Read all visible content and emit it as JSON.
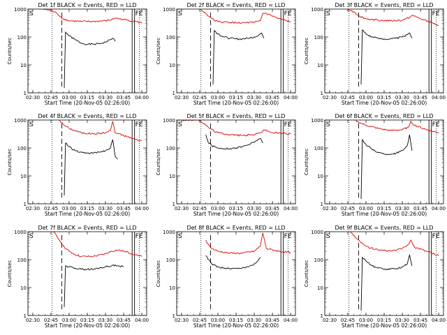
{
  "figure": {
    "colors": {
      "events": "#000000",
      "lld": "#dd0000",
      "axes": "#000000"
    },
    "shared": {
      "xlabel": "Start Time (20-Nov-05 02:26:00)",
      "ylabel": "Counts/sec",
      "x_tick_labels": [
        "02:30",
        "02:45",
        "03:00",
        "03:15",
        "03:30",
        "03:45",
        "04:00"
      ],
      "y_tick_labels": [
        "1",
        "10",
        "100",
        "1000"
      ],
      "marker_left": "S",
      "marker_right": "FE"
    }
  },
  "chart_data": [
    {
      "type": "line",
      "title": "Det 1f BLACK = Events, RED = LLD",
      "xlabel": "Start Time (20-Nov-05 02:26:00)",
      "ylabel": "Counts/sec",
      "x_ticks": [
        "02:30",
        "02:45",
        "03:00",
        "03:15",
        "03:30",
        "03:45",
        "04:00"
      ],
      "xlim_minutes_after_start": [
        0,
        98
      ],
      "ylim": [
        1,
        1000
      ],
      "yscale": "log",
      "series": [
        {
          "name": "Events",
          "color": "#000000",
          "x": [
            "02:56",
            "02:57",
            "03:00",
            "03:05",
            "03:10",
            "03:15",
            "03:20",
            "03:25",
            "03:30",
            "03:34",
            "03:36",
            "03:37",
            "03:38"
          ],
          "y": [
            1.5,
            150,
            110,
            80,
            60,
            55,
            55,
            58,
            65,
            80,
            90,
            85,
            70
          ]
        },
        {
          "name": "LLD",
          "color": "#dd0000",
          "x": [
            "02:38",
            "02:45",
            "02:50",
            "02:55",
            "03:00",
            "03:10",
            "03:20",
            "03:30",
            "03:35",
            "03:38",
            "03:45",
            "03:55",
            "04:00"
          ],
          "y": [
            1000,
            900,
            700,
            450,
            380,
            360,
            360,
            380,
            420,
            480,
            420,
            360,
            320
          ]
        }
      ]
    },
    {
      "type": "line",
      "title": "Det 2f BLACK = Events, RED = LLD",
      "xlabel": "Start Time (20-Nov-05 02:26:00)",
      "ylabel": "Counts/sec",
      "x_ticks": [
        "02:30",
        "02:45",
        "03:00",
        "03:15",
        "03:30",
        "03:45",
        "04:00"
      ],
      "xlim_minutes_after_start": [
        0,
        98
      ],
      "ylim": [
        1,
        1000
      ],
      "yscale": "log",
      "series": [
        {
          "name": "Events",
          "color": "#000000",
          "x": [
            "02:56",
            "02:57",
            "03:00",
            "03:05",
            "03:10",
            "03:15",
            "03:20",
            "03:25",
            "03:30",
            "03:34",
            "03:36",
            "03:37",
            "03:38"
          ],
          "y": [
            2,
            170,
            130,
            100,
            90,
            85,
            85,
            90,
            100,
            120,
            140,
            110,
            90
          ]
        },
        {
          "name": "LLD",
          "color": "#dd0000",
          "x": [
            "02:45",
            "02:50",
            "02:55",
            "03:00",
            "03:10",
            "03:20",
            "03:30",
            "03:35",
            "03:37",
            "03:40",
            "03:50",
            "04:00"
          ],
          "y": [
            1000,
            700,
            450,
            350,
            330,
            320,
            330,
            380,
            700,
            700,
            450,
            350
          ]
        }
      ]
    },
    {
      "type": "line",
      "title": "Det 3f BLACK = Events, RED = LLD",
      "xlabel": "Start Time (20-Nov-05 02:26:00)",
      "ylabel": "Counts/sec",
      "x_ticks": [
        "02:30",
        "02:45",
        "03:00",
        "03:15",
        "03:30",
        "03:45",
        "04:00"
      ],
      "xlim_minutes_after_start": [
        0,
        98
      ],
      "ylim": [
        1,
        1000
      ],
      "yscale": "log",
      "series": [
        {
          "name": "Events",
          "color": "#000000",
          "x": [
            "02:56",
            "02:57",
            "03:00",
            "03:05",
            "03:10",
            "03:15",
            "03:20",
            "03:25",
            "03:30",
            "03:34",
            "03:36",
            "03:37",
            "03:38"
          ],
          "y": [
            2,
            180,
            130,
            100,
            90,
            85,
            85,
            90,
            100,
            120,
            140,
            110,
            90
          ]
        },
        {
          "name": "LLD",
          "color": "#dd0000",
          "x": [
            "02:45",
            "02:50",
            "02:55",
            "03:00",
            "03:10",
            "03:20",
            "03:30",
            "03:36",
            "03:38",
            "03:45",
            "03:55",
            "04:00"
          ],
          "y": [
            1000,
            800,
            550,
            450,
            400,
            380,
            400,
            500,
            600,
            450,
            320,
            250
          ]
        }
      ]
    },
    {
      "type": "line",
      "title": "Det 4f BLACK = Events, RED = LLD",
      "xlabel": "Start Time (20-Nov-05 02:26:00)",
      "ylabel": "Counts/sec",
      "x_ticks": [
        "02:30",
        "02:45",
        "03:00",
        "03:15",
        "03:30",
        "03:45",
        "04:00"
      ],
      "xlim_minutes_after_start": [
        0,
        98
      ],
      "ylim": [
        1,
        1000
      ],
      "yscale": "log",
      "series": [
        {
          "name": "Events",
          "color": "#000000",
          "x": [
            "02:56",
            "02:57",
            "03:00",
            "03:05",
            "03:10",
            "03:15",
            "03:20",
            "03:25",
            "03:30",
            "03:34",
            "03:36",
            "03:37",
            "03:38",
            "03:40"
          ],
          "y": [
            2,
            150,
            110,
            80,
            70,
            65,
            65,
            70,
            80,
            100,
            200,
            100,
            50,
            40
          ]
        },
        {
          "name": "LLD",
          "color": "#dd0000",
          "x": [
            "02:52",
            "02:55",
            "03:00",
            "03:10",
            "03:20",
            "03:30",
            "03:34",
            "03:36",
            "03:38",
            "03:45",
            "03:55",
            "04:00"
          ],
          "y": [
            1000,
            700,
            500,
            350,
            320,
            350,
            420,
            900,
            350,
            280,
            200,
            180
          ]
        }
      ]
    },
    {
      "type": "line",
      "title": "Det 5f BLACK = Events, RED = LLD",
      "xlabel": "Start Time (20-Nov-05 02:26:00)",
      "ylabel": "Counts/sec",
      "x_ticks": [
        "02:30",
        "02:45",
        "03:00",
        "03:15",
        "03:30",
        "03:45",
        "04:00"
      ],
      "xlim_minutes_after_start": [
        0,
        98
      ],
      "ylim": [
        1,
        1000
      ],
      "yscale": "log",
      "series": [
        {
          "name": "Events",
          "color": "#000000",
          "x": [
            "02:50",
            "02:52",
            "02:55",
            "03:00",
            "03:05",
            "03:10",
            "03:15",
            "03:20",
            "03:25",
            "03:30",
            "03:33",
            "03:35",
            "03:37"
          ],
          "y": [
            300,
            160,
            120,
            100,
            95,
            95,
            100,
            110,
            130,
            160,
            200,
            220,
            150
          ]
        },
        {
          "name": "LLD",
          "color": "#dd0000",
          "x": [
            "02:30",
            "02:40",
            "02:45",
            "02:50",
            "02:55",
            "03:00",
            "03:10",
            "03:20",
            "03:30",
            "03:35",
            "03:38",
            "03:45",
            "04:00"
          ],
          "y": [
            1000,
            1000,
            1000,
            650,
            450,
            350,
            300,
            280,
            300,
            350,
            450,
            350,
            320
          ]
        }
      ]
    },
    {
      "type": "line",
      "title": "Det 6f BLACK = Events, RED = LLD",
      "xlabel": "Start Time (20-Nov-05 02:26:00)",
      "ylabel": "Counts/sec",
      "x_ticks": [
        "02:30",
        "02:45",
        "03:00",
        "03:15",
        "03:30",
        "03:45",
        "04:00"
      ],
      "xlim_minutes_after_start": [
        0,
        98
      ],
      "ylim": [
        1,
        1000
      ],
      "yscale": "log",
      "series": [
        {
          "name": "Events",
          "color": "#000000",
          "x": [
            "02:56",
            "02:57",
            "03:00",
            "03:05",
            "03:10",
            "03:15",
            "03:20",
            "03:25",
            "03:30",
            "03:34",
            "03:36",
            "03:37",
            "03:38"
          ],
          "y": [
            1.5,
            200,
            130,
            90,
            70,
            60,
            60,
            65,
            80,
            120,
            300,
            150,
            80
          ]
        },
        {
          "name": "LLD",
          "color": "#dd0000",
          "x": [
            "02:50",
            "02:55",
            "03:00",
            "03:10",
            "03:20",
            "03:30",
            "03:35",
            "03:37",
            "03:40",
            "03:50",
            "04:00"
          ],
          "y": [
            1000,
            800,
            650,
            500,
            420,
            450,
            550,
            900,
            650,
            450,
            350
          ]
        }
      ]
    },
    {
      "type": "line",
      "title": "Det 7f BLACK = Events, RED = LLD",
      "xlabel": "Start Time (20-Nov-05 02:26:00)",
      "ylabel": "Counts/sec",
      "x_ticks": [
        "02:30",
        "02:45",
        "03:00",
        "03:15",
        "03:30",
        "03:45",
        "04:00"
      ],
      "xlim_minutes_after_start": [
        0,
        98
      ],
      "ylim": [
        1,
        1000
      ],
      "yscale": "log",
      "series": [
        {
          "name": "Events",
          "color": "#000000",
          "x": [
            "02:56",
            "02:57",
            "03:00",
            "03:05",
            "03:10",
            "03:15",
            "03:20",
            "03:25",
            "03:30",
            "03:35",
            "03:38",
            "03:40",
            "03:45"
          ],
          "y": [
            2,
            60,
            55,
            50,
            45,
            45,
            45,
            50,
            55,
            60,
            65,
            60,
            55
          ]
        },
        {
          "name": "LLD",
          "color": "#dd0000",
          "x": [
            "02:47",
            "02:52",
            "02:56",
            "03:00",
            "03:05",
            "03:10",
            "03:20",
            "03:30",
            "03:35",
            "03:40",
            "03:45",
            "03:55",
            "04:00"
          ],
          "y": [
            1000,
            500,
            280,
            200,
            150,
            130,
            130,
            160,
            200,
            220,
            200,
            150,
            130
          ]
        }
      ]
    },
    {
      "type": "line",
      "title": "Det 8f BLACK = Events, RED = LLD",
      "xlabel": "Start Time (20-Nov-05 02:26:00)",
      "ylabel": "Counts/sec",
      "x_ticks": [
        "02:30",
        "02:45",
        "03:00",
        "03:15",
        "03:30",
        "03:45",
        "04:00"
      ],
      "xlim_minutes_after_start": [
        0,
        98
      ],
      "ylim": [
        1,
        1000
      ],
      "yscale": "log",
      "series": [
        {
          "name": "Events",
          "color": "#000000",
          "x": [
            "02:50",
            "02:52",
            "02:55",
            "03:00",
            "03:05",
            "03:10",
            "03:15",
            "03:20",
            "03:25",
            "03:30",
            "03:33",
            "03:35"
          ],
          "y": [
            140,
            100,
            70,
            55,
            50,
            48,
            48,
            50,
            55,
            70,
            90,
            120
          ]
        },
        {
          "name": "LLD",
          "color": "#dd0000",
          "x": [
            "02:50",
            "02:52",
            "02:55",
            "03:00",
            "03:10",
            "03:20",
            "03:30",
            "03:35",
            "03:37",
            "03:40",
            "03:50",
            "04:00"
          ],
          "y": [
            500,
            350,
            250,
            200,
            170,
            170,
            200,
            300,
            900,
            250,
            200,
            180
          ]
        }
      ]
    },
    {
      "type": "line",
      "title": "Det 9f BLACK = Events, RED = LLD",
      "xlabel": "Start Time (20-Nov-05 02:26:00)",
      "ylabel": "Counts/sec",
      "x_ticks": [
        "02:30",
        "02:45",
        "03:00",
        "03:15",
        "03:30",
        "03:45",
        "04:00"
      ],
      "xlim_minutes_after_start": [
        0,
        98
      ],
      "ylim": [
        1,
        1000
      ],
      "yscale": "log",
      "series": [
        {
          "name": "Events",
          "color": "#000000",
          "x": [
            "02:56",
            "02:57",
            "03:00",
            "03:05",
            "03:10",
            "03:15",
            "03:20",
            "03:25",
            "03:30",
            "03:34",
            "03:36",
            "03:37",
            "03:38"
          ],
          "y": [
            1.5,
            120,
            90,
            60,
            50,
            45,
            45,
            48,
            55,
            70,
            150,
            90,
            60
          ]
        },
        {
          "name": "LLD",
          "color": "#dd0000",
          "x": [
            "02:47",
            "02:52",
            "02:56",
            "03:00",
            "03:10",
            "03:20",
            "03:30",
            "03:35",
            "03:37",
            "03:40",
            "03:50",
            "04:00"
          ],
          "y": [
            1000,
            600,
            400,
            300,
            220,
            200,
            250,
            350,
            500,
            280,
            200,
            140
          ]
        }
      ]
    }
  ]
}
